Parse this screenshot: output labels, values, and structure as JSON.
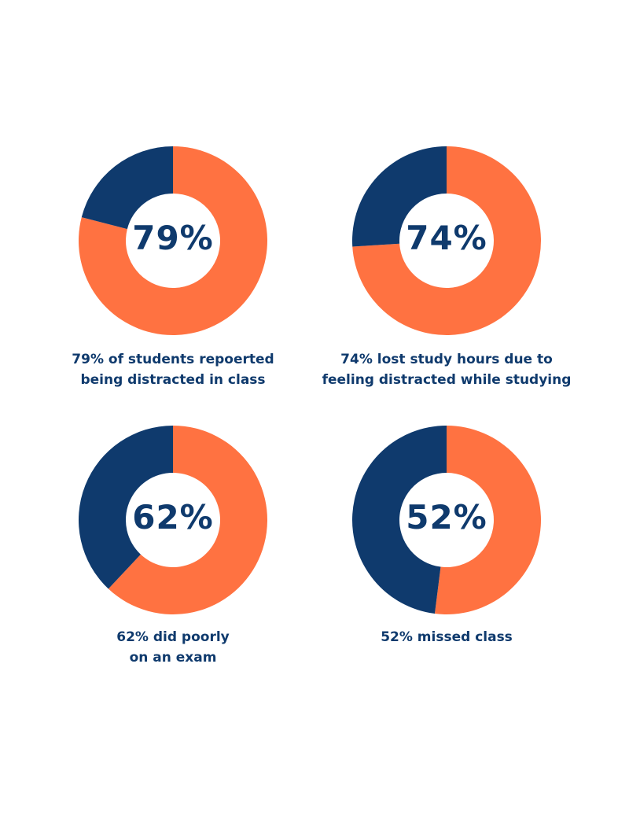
{
  "colors": {
    "accent": "#ff7241",
    "primary": "#0f3a6d",
    "background": "#ffffff"
  },
  "chart_data": [
    {
      "type": "pie",
      "donut": true,
      "value": 79,
      "center_label": "79%",
      "slices": [
        {
          "value": 79,
          "color": "#ff7241"
        },
        {
          "value": 21,
          "color": "#0f3a6d"
        }
      ],
      "caption_lines": [
        "79% of students repoerted",
        "being distracted in class"
      ]
    },
    {
      "type": "pie",
      "donut": true,
      "value": 74,
      "center_label": "74%",
      "slices": [
        {
          "value": 74,
          "color": "#ff7241"
        },
        {
          "value": 26,
          "color": "#0f3a6d"
        }
      ],
      "caption_lines": [
        "74% lost study hours due to",
        "feeling distracted while studying"
      ]
    },
    {
      "type": "pie",
      "donut": true,
      "value": 62,
      "center_label": "62%",
      "slices": [
        {
          "value": 62,
          "color": "#ff7241"
        },
        {
          "value": 38,
          "color": "#0f3a6d"
        }
      ],
      "caption_lines": [
        "62% did poorly",
        "on an exam"
      ]
    },
    {
      "type": "pie",
      "donut": true,
      "value": 52,
      "center_label": "52%",
      "slices": [
        {
          "value": 52,
          "color": "#ff7241"
        },
        {
          "value": 48,
          "color": "#0f3a6d"
        }
      ],
      "caption_lines": [
        "52% missed class"
      ]
    }
  ]
}
